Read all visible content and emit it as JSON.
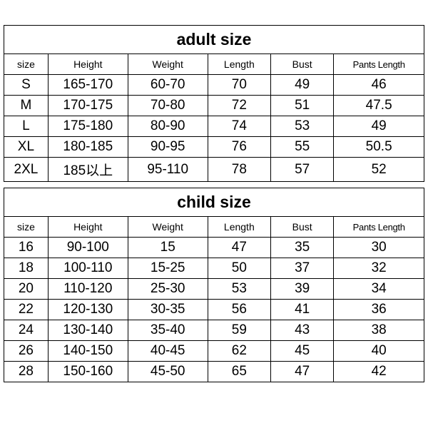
{
  "adult": {
    "title": "adult size",
    "columns": [
      "size",
      "Height",
      "Weight",
      "Length",
      "Bust",
      "Pants Length"
    ],
    "rows": [
      [
        "S",
        "165-170",
        "60-70",
        "70",
        "49",
        "46"
      ],
      [
        "M",
        "170-175",
        "70-80",
        "72",
        "51",
        "47.5"
      ],
      [
        "L",
        "175-180",
        "80-90",
        "74",
        "53",
        "49"
      ],
      [
        "XL",
        "180-185",
        "90-95",
        "76",
        "55",
        "50.5"
      ],
      [
        "2XL",
        "185以上",
        "95-110",
        "78",
        "57",
        "52"
      ]
    ]
  },
  "child": {
    "title": "child size",
    "columns": [
      "size",
      "Height",
      "Weight",
      "Length",
      "Bust",
      "Pants Length"
    ],
    "rows": [
      [
        "16",
        "90-100",
        "15",
        "47",
        "35",
        "30"
      ],
      [
        "18",
        "100-110",
        "15-25",
        "50",
        "37",
        "32"
      ],
      [
        "20",
        "110-120",
        "25-30",
        "53",
        "39",
        "34"
      ],
      [
        "22",
        "120-130",
        "30-35",
        "56",
        "41",
        "36"
      ],
      [
        "24",
        "130-140",
        "35-40",
        "59",
        "43",
        "38"
      ],
      [
        "26",
        "140-150",
        "40-45",
        "62",
        "45",
        "40"
      ],
      [
        "28",
        "150-160",
        "45-50",
        "65",
        "47",
        "42"
      ]
    ]
  },
  "styling": {
    "border_color": "#000000",
    "border_width": 1.5,
    "background_color": "#ffffff",
    "title_fontsize": 23,
    "header_fontsize": 14,
    "data_fontsize": 19,
    "col_widths_pct": [
      10.5,
      19,
      19,
      15,
      15,
      21.5
    ]
  }
}
